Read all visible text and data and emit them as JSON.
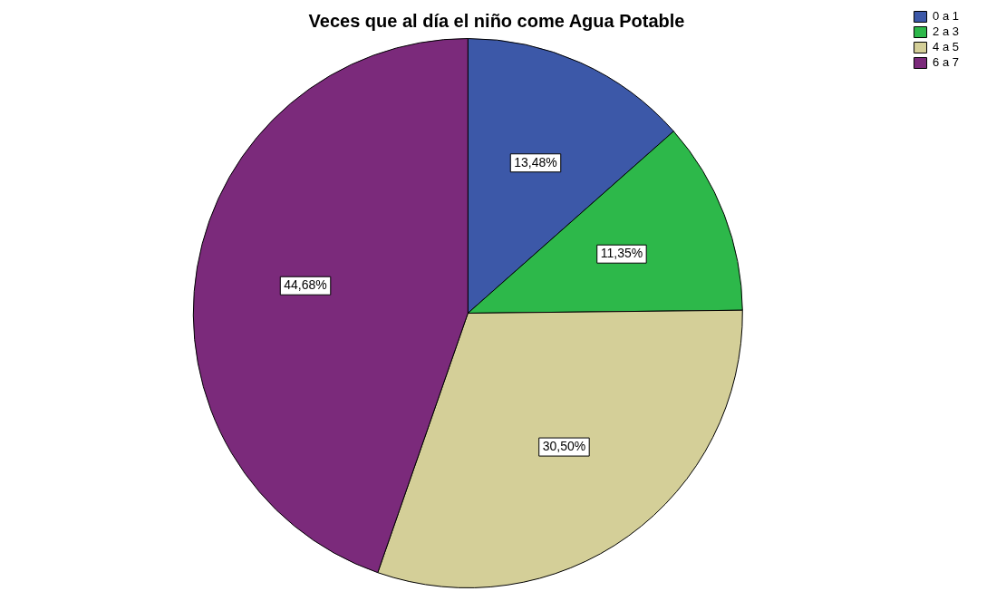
{
  "chart_data": {
    "type": "pie",
    "title": "Veces que al día el niño come Agua Potable",
    "categories": [
      "0 a 1",
      "2 a 3",
      "4 a 5",
      "6 a 7"
    ],
    "values": [
      13.48,
      11.35,
      30.5,
      44.68
    ],
    "colors": [
      "#3c58a8",
      "#2db84a",
      "#d4cf98",
      "#7b2a7b"
    ],
    "value_labels": [
      "13,48%",
      "11,35%",
      "30,50%",
      "44,68%"
    ],
    "legend": "top right"
  }
}
